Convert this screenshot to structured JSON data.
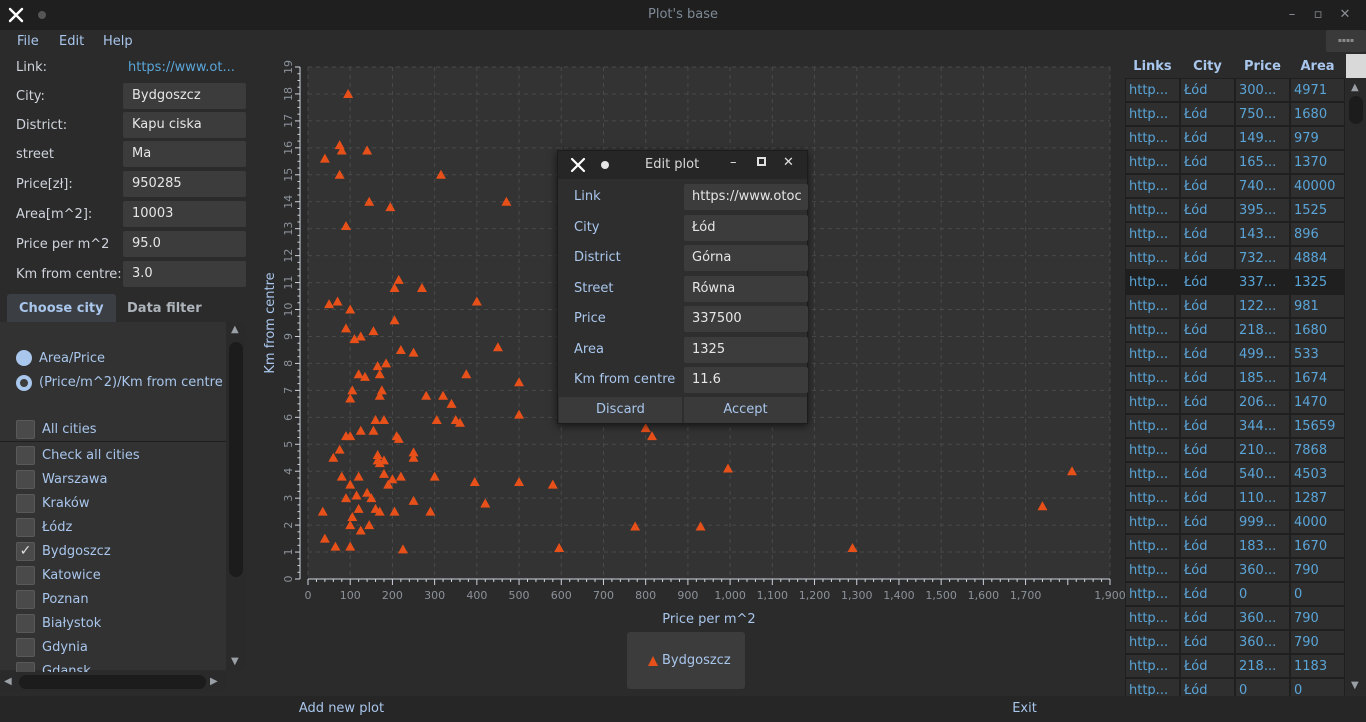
{
  "window": {
    "title": "Plot's base",
    "minimize": "–",
    "maximize": "▫",
    "close": "✕"
  },
  "menu": {
    "file": "File",
    "edit": "Edit",
    "help": "Help"
  },
  "form": {
    "link_label": "Link:",
    "link_value": "https://www.ot...",
    "city_label": "City:",
    "city_value": "Bydgoszcz",
    "district_label": "District:",
    "district_value": "Kapu ciska",
    "street_label": "street",
    "street_value": "Ma",
    "price_label": "Price[zł]:",
    "price_value": "950285",
    "area_label": "Area[m^2]:",
    "area_value": "10003",
    "ppm_label": "Price per m^2",
    "ppm_value": "95.0",
    "km_label": "Km from centre:",
    "km_value": "3.0"
  },
  "tabs": {
    "choose_city": "Choose city",
    "data_filter": "Data filter"
  },
  "radios": {
    "area_price": "Area/Price",
    "ppm_km": "(Price/m^2)/Km from centre"
  },
  "cities": {
    "all": "All cities",
    "items": [
      {
        "label": "Check all cities",
        "checked": false
      },
      {
        "label": "Warszawa",
        "checked": false
      },
      {
        "label": "Kraków",
        "checked": false
      },
      {
        "label": "Łódz",
        "checked": false
      },
      {
        "label": "Bydgoszcz",
        "checked": true
      },
      {
        "label": "Katowice",
        "checked": false
      },
      {
        "label": "Poznan",
        "checked": false
      },
      {
        "label": "Białystok",
        "checked": false
      },
      {
        "label": "Gdynia",
        "checked": false
      },
      {
        "label": "Gdansk",
        "checked": false
      }
    ]
  },
  "chart_data": {
    "type": "scatter",
    "xlabel": "Price per m^2",
    "ylabel": "Km from centre",
    "xlim": [
      0,
      1900
    ],
    "ylim": [
      0,
      19
    ],
    "xticks": [
      0,
      100,
      200,
      300,
      400,
      500,
      600,
      700,
      800,
      900,
      1000,
      1100,
      1200,
      1300,
      1400,
      1500,
      1600,
      1700,
      1900
    ],
    "xtick_labels": [
      "0",
      "100",
      "200",
      "300",
      "400",
      "500",
      "600",
      "700",
      "800",
      "900",
      "1,000",
      "1,100",
      "1,200",
      "1,300",
      "1,400",
      "1,500",
      "1,600",
      "1,700",
      "1,900"
    ],
    "yticks": [
      0,
      1,
      2,
      3,
      4,
      5,
      6,
      7,
      8,
      9,
      10,
      11,
      12,
      13,
      14,
      15,
      16,
      17,
      18,
      19
    ],
    "grid": true,
    "marker_color": "#e8501a",
    "series": [
      {
        "name": "Bydgoszcz",
        "points": [
          [
            95,
            18
          ],
          [
            40,
            15.6
          ],
          [
            75,
            16.1
          ],
          [
            80,
            15.9
          ],
          [
            75,
            15
          ],
          [
            140,
            15.9
          ],
          [
            315,
            15
          ],
          [
            470,
            14
          ],
          [
            145,
            14
          ],
          [
            195,
            13.8
          ],
          [
            90,
            13.1
          ],
          [
            215,
            11.1
          ],
          [
            205,
            10.8
          ],
          [
            270,
            10.8
          ],
          [
            50,
            10.2
          ],
          [
            70,
            10.3
          ],
          [
            400,
            10.3
          ],
          [
            100,
            10
          ],
          [
            205,
            9.6
          ],
          [
            90,
            9.3
          ],
          [
            155,
            9.2
          ],
          [
            110,
            8.9
          ],
          [
            125,
            9
          ],
          [
            220,
            8.5
          ],
          [
            250,
            8.4
          ],
          [
            450,
            8.6
          ],
          [
            165,
            7.9
          ],
          [
            185,
            8
          ],
          [
            170,
            7.6
          ],
          [
            120,
            7.6
          ],
          [
            135,
            7.5
          ],
          [
            375,
            7.6
          ],
          [
            500,
            7.3
          ],
          [
            105,
            7
          ],
          [
            100,
            6.7
          ],
          [
            175,
            7
          ],
          [
            170,
            6.8
          ],
          [
            280,
            6.8
          ],
          [
            320,
            6.8
          ],
          [
            340,
            6.5
          ],
          [
            500,
            6.1
          ],
          [
            305,
            5.9
          ],
          [
            360,
            5.8
          ],
          [
            350,
            5.9
          ],
          [
            160,
            5.9
          ],
          [
            180,
            5.9
          ],
          [
            125,
            5.5
          ],
          [
            155,
            5.5
          ],
          [
            90,
            5.3
          ],
          [
            100,
            5.3
          ],
          [
            210,
            5.3
          ],
          [
            215,
            5.2
          ],
          [
            800,
            5.6
          ],
          [
            815,
            5.3
          ],
          [
            75,
            4.8
          ],
          [
            60,
            4.5
          ],
          [
            165,
            4.6
          ],
          [
            250,
            4.7
          ],
          [
            250,
            4.5
          ],
          [
            165,
            4.4
          ],
          [
            170,
            4.3
          ],
          [
            180,
            4.4
          ],
          [
            995,
            4.1
          ],
          [
            1810,
            4
          ],
          [
            80,
            3.8
          ],
          [
            120,
            3.8
          ],
          [
            180,
            3.9
          ],
          [
            220,
            3.8
          ],
          [
            300,
            3.8
          ],
          [
            190,
            3.5
          ],
          [
            200,
            3.7
          ],
          [
            395,
            3.6
          ],
          [
            500,
            3.6
          ],
          [
            580,
            3.5
          ],
          [
            100,
            3.5
          ],
          [
            90,
            3
          ],
          [
            115,
            3.1
          ],
          [
            140,
            3.2
          ],
          [
            150,
            3
          ],
          [
            160,
            2.6
          ],
          [
            170,
            2.5
          ],
          [
            250,
            2.9
          ],
          [
            420,
            2.8
          ],
          [
            1740,
            2.7
          ],
          [
            35,
            2.5
          ],
          [
            120,
            2.6
          ],
          [
            205,
            2.5
          ],
          [
            290,
            2.5
          ],
          [
            105,
            2.3
          ],
          [
            100,
            2
          ],
          [
            125,
            1.8
          ],
          [
            145,
            2
          ],
          [
            775,
            1.95
          ],
          [
            930,
            1.95
          ],
          [
            40,
            1.5
          ],
          [
            65,
            1.2
          ],
          [
            100,
            1.2
          ],
          [
            225,
            1.1
          ],
          [
            595,
            1.15
          ],
          [
            1290,
            1.15
          ]
        ]
      }
    ]
  },
  "dialog": {
    "title": "Edit plot",
    "fields": [
      {
        "label": "Link",
        "value": "https://www.otoc"
      },
      {
        "label": "City",
        "value": "Łód"
      },
      {
        "label": "District",
        "value": "Górna"
      },
      {
        "label": "Street",
        "value": "Równa"
      },
      {
        "label": "Price",
        "value": "337500"
      },
      {
        "label": "Area",
        "value": "1325"
      },
      {
        "label": "Km from centre",
        "value": "11.6"
      }
    ],
    "discard": "Discard",
    "accept": "Accept"
  },
  "table": {
    "headers": [
      "Links",
      "City",
      "Price",
      "Area"
    ],
    "selected_row": 8,
    "rows": [
      [
        "http...",
        "Łód",
        "300...",
        "4971"
      ],
      [
        "http...",
        "Łód",
        "750...",
        "1680"
      ],
      [
        "http...",
        "Łód",
        "149...",
        "979"
      ],
      [
        "http...",
        "Łód",
        "165...",
        "1370"
      ],
      [
        "http...",
        "Łód",
        "740...",
        "40000"
      ],
      [
        "http...",
        "Łód",
        "395...",
        "1525"
      ],
      [
        "http...",
        "Łód",
        "143...",
        "896"
      ],
      [
        "http...",
        "Łód",
        "732...",
        "4884"
      ],
      [
        "http...",
        "Łód",
        "337...",
        "1325"
      ],
      [
        "http...",
        "Łód",
        "122...",
        "981"
      ],
      [
        "http...",
        "Łód",
        "218...",
        "1680"
      ],
      [
        "http...",
        "Łód",
        "499...",
        "533"
      ],
      [
        "http...",
        "Łód",
        "185...",
        "1674"
      ],
      [
        "http...",
        "Łód",
        "206...",
        "1470"
      ],
      [
        "http...",
        "Łód",
        "344...",
        "15659"
      ],
      [
        "http...",
        "Łód",
        "210...",
        "7868"
      ],
      [
        "http...",
        "Łód",
        "540...",
        "4503"
      ],
      [
        "http...",
        "Łód",
        "110...",
        "1287"
      ],
      [
        "http...",
        "Łód",
        "999...",
        "4000"
      ],
      [
        "http...",
        "Łód",
        "183...",
        "1670"
      ],
      [
        "http...",
        "Łód",
        "360...",
        "790"
      ],
      [
        "http...",
        "Łód",
        "0",
        "0"
      ],
      [
        "http...",
        "Łód",
        "360...",
        "790"
      ],
      [
        "http...",
        "Łód",
        "360...",
        "790"
      ],
      [
        "http...",
        "Łód",
        "218...",
        "1183"
      ],
      [
        "http...",
        "Łód",
        "0",
        "0"
      ]
    ]
  },
  "bottom": {
    "add": "Add new plot",
    "exit": "Exit"
  }
}
